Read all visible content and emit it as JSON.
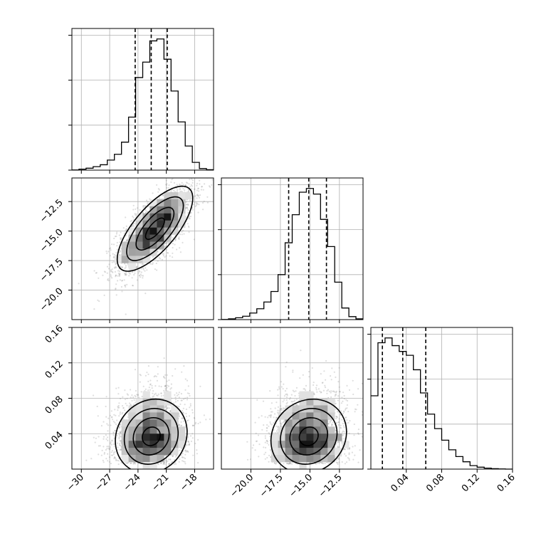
{
  "chart_data": {
    "type": "corner",
    "parameters": [
      {
        "name": "",
        "range": [
          -31.0,
          -16.0
        ],
        "ticks": [
          -30,
          -27,
          -24,
          -21,
          -18
        ],
        "tick_labels": [
          "−30",
          "−27",
          "−24",
          "−21",
          "−18"
        ]
      },
      {
        "name": "",
        "range": [
          -22.5,
          -10.5
        ],
        "ticks": [
          -20.0,
          -17.5,
          -15.0,
          -12.5
        ],
        "tick_labels": [
          "−20.0",
          "−17.5",
          "−15.0",
          "−12.5"
        ]
      },
      {
        "name": "",
        "range": [
          0.0,
          0.16
        ],
        "ticks": [
          0.04,
          0.08,
          0.12,
          0.16
        ],
        "tick_labels": [
          "0.04",
          "0.08",
          "0.12",
          "0.16"
        ]
      }
    ],
    "histograms": [
      {
        "param": 0,
        "bins": [
          -31.0,
          -30.25,
          -29.5,
          -28.75,
          -28.0,
          -27.25,
          -26.5,
          -25.75,
          -25.0,
          -24.25,
          -23.5,
          -22.75,
          -22.0,
          -21.25,
          -20.5,
          -19.75,
          -19.0,
          -18.25,
          -17.5,
          -16.75,
          -16.0
        ],
        "counts": [
          1,
          5,
          10,
          18,
          28,
          52,
          82,
          145,
          275,
          480,
          560,
          670,
          680,
          575,
          410,
          250,
          125,
          40,
          8,
          2
        ],
        "quantiles": [
          -24.3,
          -22.6,
          -20.9
        ]
      },
      {
        "param": 1,
        "bins": [
          -22.5,
          -21.9,
          -21.3,
          -20.7,
          -20.1,
          -19.5,
          -18.9,
          -18.3,
          -17.7,
          -17.1,
          -16.5,
          -15.9,
          -15.3,
          -14.7,
          -14.1,
          -13.5,
          -12.9,
          -12.3,
          -11.7,
          -11.1,
          -10.5
        ],
        "counts": [
          1,
          4,
          10,
          18,
          35,
          58,
          94,
          150,
          240,
          410,
          560,
          680,
          700,
          670,
          535,
          390,
          200,
          62,
          16,
          4
        ],
        "quantiles": [
          -16.8,
          -15.1,
          -13.6
        ]
      },
      {
        "param": 2,
        "bins": [
          0.0,
          0.008,
          0.016,
          0.024,
          0.032,
          0.04,
          0.048,
          0.056,
          0.064,
          0.072,
          0.08,
          0.088,
          0.096,
          0.104,
          0.112,
          0.12,
          0.128,
          0.136,
          0.144,
          0.152,
          0.16
        ],
        "counts": [
          380,
          655,
          680,
          640,
          610,
          590,
          515,
          395,
          285,
          210,
          150,
          100,
          65,
          38,
          18,
          10,
          5,
          2,
          1,
          0
        ],
        "quantiles": [
          0.013,
          0.036,
          0.062
        ]
      }
    ],
    "pairs": [
      {
        "x": 0,
        "y": 1,
        "x_center": -22.2,
        "y_center": -14.8,
        "sx": 2.0,
        "sy": 1.8,
        "rho": 0.72,
        "n_points": 2600
      },
      {
        "x": 0,
        "y": 2,
        "x_center": -22.6,
        "y_center": 0.037,
        "sx": 1.9,
        "sy": 0.021,
        "rho": 0.12,
        "n_points": 2600
      },
      {
        "x": 1,
        "y": 2,
        "x_center": -15.1,
        "y_center": 0.037,
        "sx": 1.6,
        "sy": 0.021,
        "rho": 0.12,
        "n_points": 2600
      }
    ],
    "grid": true,
    "contour_levels": 4
  }
}
